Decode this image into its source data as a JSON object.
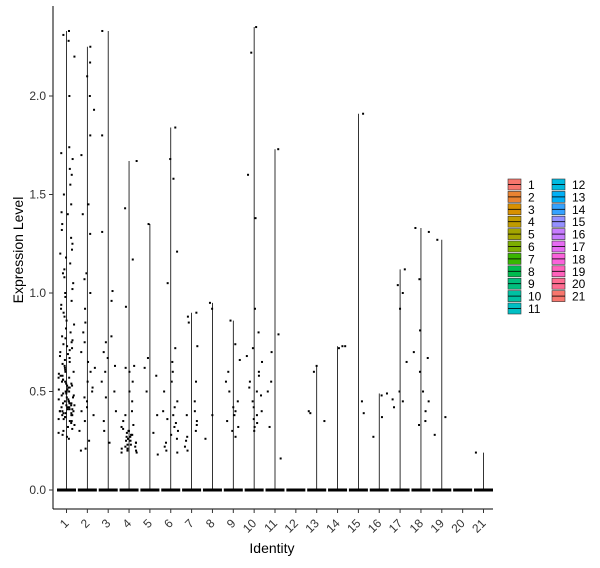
{
  "chart_data": {
    "type": "violin",
    "title": "",
    "xlabel": "Identity",
    "ylabel": "Expression Level",
    "categories": [
      "1",
      "2",
      "3",
      "4",
      "5",
      "6",
      "7",
      "8",
      "9",
      "10",
      "11",
      "12",
      "13",
      "14",
      "15",
      "16",
      "17",
      "18",
      "19",
      "20",
      "21"
    ],
    "ylim": [
      -0.1,
      2.4
    ],
    "yticks": [
      0.0,
      0.5,
      1.0,
      1.5,
      2.0
    ],
    "ytick_labels": [
      "0.0",
      "0.5",
      "1.0",
      "1.5",
      "2.0"
    ],
    "max_values": [
      2.33,
      2.25,
      2.33,
      1.67,
      1.35,
      1.84,
      0.9,
      0.95,
      0.86,
      2.35,
      1.73,
      0.0,
      0.63,
      0.73,
      1.91,
      0.49,
      1.12,
      1.33,
      1.27,
      0.0,
      0.19
    ],
    "colors": [
      "#F8766D",
      "#EA8331",
      "#D89000",
      "#C09B00",
      "#A3A500",
      "#7CAE00",
      "#39B600",
      "#00BB4E",
      "#00BF7D",
      "#00C1A3",
      "#00BFC4",
      "#00BAE0",
      "#00B0F6",
      "#35A2FF",
      "#9590FF",
      "#C77CFF",
      "#E76BF3",
      "#FA62DB",
      "#FF62BC",
      "#FF6C91",
      "#F8766D"
    ],
    "points": [
      {
        "cat": "1",
        "y": [
          2.33,
          2.31,
          2.28,
          2.2,
          2.0,
          1.74,
          1.71,
          1.68,
          1.63,
          1.6,
          1.55,
          1.5,
          1.45,
          1.41,
          1.4,
          1.35,
          1.32,
          1.28,
          1.25,
          1.22,
          1.2,
          1.18,
          1.15,
          1.12,
          1.1,
          1.08,
          1.05,
          1.02,
          1.0,
          0.98,
          0.96,
          0.94,
          0.92,
          0.9,
          0.88,
          0.86,
          0.84,
          0.82,
          0.8,
          0.78,
          0.77,
          0.76,
          0.75,
          0.74,
          0.73,
          0.72,
          0.71,
          0.7,
          0.69,
          0.68,
          0.67,
          0.66,
          0.65,
          0.64,
          0.63,
          0.62,
          0.61,
          0.6,
          0.6,
          0.59,
          0.58,
          0.58,
          0.57,
          0.57,
          0.56,
          0.56,
          0.55,
          0.55,
          0.54,
          0.54,
          0.53,
          0.53,
          0.52,
          0.52,
          0.51,
          0.51,
          0.5,
          0.5,
          0.5,
          0.49,
          0.49,
          0.48,
          0.48,
          0.47,
          0.47,
          0.46,
          0.46,
          0.45,
          0.45,
          0.45,
          0.44,
          0.44,
          0.44,
          0.43,
          0.43,
          0.43,
          0.42,
          0.42,
          0.42,
          0.41,
          0.41,
          0.41,
          0.4,
          0.4,
          0.4,
          0.4,
          0.39,
          0.39,
          0.39,
          0.38,
          0.38,
          0.38,
          0.37,
          0.37,
          0.36,
          0.36,
          0.35,
          0.35,
          0.34,
          0.33,
          0.32,
          0.31,
          0.3,
          0.29,
          0.28,
          0.27,
          0.26
        ]
      },
      {
        "cat": "2",
        "y": [
          2.25,
          2.17,
          2.1,
          2.0,
          1.93,
          1.8,
          1.7,
          1.45,
          1.4,
          1.3,
          1.1,
          1.07,
          1.0,
          0.92,
          0.85,
          0.8,
          0.75,
          0.7,
          0.65,
          0.62,
          0.6,
          0.55,
          0.52,
          0.5,
          0.47,
          0.45,
          0.42,
          0.4,
          0.38,
          0.35,
          0.3,
          0.25,
          0.21,
          0.2
        ]
      },
      {
        "cat": "3",
        "y": [
          2.33,
          1.8,
          1.31,
          1.01,
          0.96,
          0.78,
          0.75,
          0.7,
          0.67,
          0.63,
          0.6,
          0.55,
          0.5,
          0.47,
          0.4,
          0.35,
          0.3,
          0.24
        ]
      },
      {
        "cat": "4",
        "y": [
          1.67,
          1.43,
          1.17,
          0.93,
          0.63,
          0.62,
          0.6,
          0.55,
          0.5,
          0.45,
          0.4,
          0.38,
          0.35,
          0.33,
          0.32,
          0.31,
          0.3,
          0.3,
          0.29,
          0.28,
          0.28,
          0.27,
          0.27,
          0.26,
          0.26,
          0.25,
          0.25,
          0.24,
          0.24,
          0.23,
          0.23,
          0.22,
          0.22,
          0.21,
          0.21,
          0.2,
          0.2,
          0.19,
          0.19
        ]
      },
      {
        "cat": "5",
        "y": [
          1.35,
          0.67,
          0.62,
          0.58,
          0.5,
          0.38,
          0.29,
          0.18
        ]
      },
      {
        "cat": "6",
        "y": [
          1.84,
          1.68,
          1.58,
          1.21,
          1.05,
          0.72,
          0.65,
          0.6,
          0.55,
          0.5,
          0.45,
          0.42,
          0.4,
          0.38,
          0.36,
          0.34,
          0.32,
          0.3,
          0.28,
          0.26,
          0.24,
          0.22,
          0.2,
          0.19
        ]
      },
      {
        "cat": "7",
        "y": [
          0.9,
          0.88,
          0.85,
          0.73,
          0.55,
          0.45,
          0.4,
          0.38,
          0.35,
          0.33,
          0.3,
          0.27,
          0.25,
          0.22,
          0.2
        ]
      },
      {
        "cat": "8",
        "y": [
          0.95,
          0.92,
          0.38,
          0.26
        ]
      },
      {
        "cat": "9",
        "y": [
          0.86,
          0.74,
          0.66,
          0.6,
          0.55,
          0.5,
          0.45,
          0.42,
          0.4,
          0.38,
          0.35,
          0.32,
          0.3,
          0.27
        ]
      },
      {
        "cat": "10",
        "y": [
          2.35,
          2.22,
          1.6,
          1.38,
          0.92,
          0.8,
          0.72,
          0.68,
          0.65,
          0.6,
          0.58,
          0.55,
          0.52,
          0.5,
          0.48,
          0.45,
          0.42,
          0.4,
          0.38,
          0.36,
          0.34,
          0.32,
          0.3
        ]
      },
      {
        "cat": "11",
        "y": [
          1.73,
          0.79,
          0.7,
          0.55,
          0.5,
          0.32,
          0.16
        ]
      },
      {
        "cat": "12",
        "y": []
      },
      {
        "cat": "13",
        "y": [
          0.63,
          0.6,
          0.4,
          0.39,
          0.35
        ]
      },
      {
        "cat": "14",
        "y": [
          0.73,
          0.72,
          0.73
        ]
      },
      {
        "cat": "15",
        "y": [
          1.91,
          0.45,
          0.39
        ]
      },
      {
        "cat": "16",
        "y": [
          0.49,
          0.48,
          0.37,
          0.27
        ]
      },
      {
        "cat": "17",
        "y": [
          1.12,
          1.04,
          1.0,
          0.92,
          0.65,
          0.5,
          0.46,
          0.45,
          0.42
        ]
      },
      {
        "cat": "18",
        "y": [
          1.33,
          1.31,
          1.07,
          0.81,
          0.7,
          0.67,
          0.6,
          0.5,
          0.45,
          0.4,
          0.35,
          0.33
        ]
      },
      {
        "cat": "19",
        "y": [
          1.27,
          0.37,
          0.28
        ]
      },
      {
        "cat": "20",
        "y": []
      },
      {
        "cat": "21",
        "y": [
          0.19
        ]
      }
    ],
    "legend": {
      "position": "right",
      "entries": [
        "1",
        "2",
        "3",
        "4",
        "5",
        "6",
        "7",
        "8",
        "9",
        "10",
        "11",
        "12",
        "13",
        "14",
        "15",
        "16",
        "17",
        "18",
        "19",
        "20",
        "21"
      ]
    },
    "grid": false
  }
}
